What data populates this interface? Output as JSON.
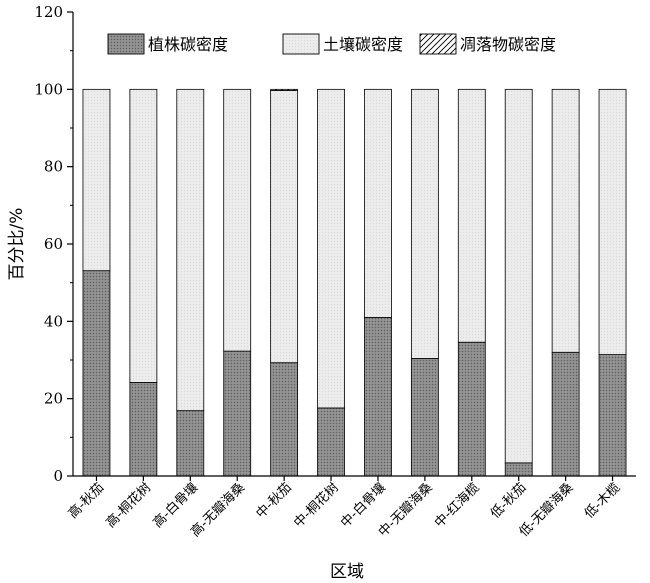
{
  "chart_data": {
    "type": "bar",
    "stacked": true,
    "title": "",
    "xlabel": "区域",
    "ylabel": "百分比/%",
    "ylim": [
      0,
      120
    ],
    "yticks": [
      0,
      20,
      40,
      60,
      80,
      100,
      120
    ],
    "grid": false,
    "legend_position": "top-right",
    "categories": [
      "高-秋茄",
      "高-桐花树",
      "高-白骨壤",
      "高-无瓣海桑",
      "中-秋茄",
      "中-桐花树",
      "中-白骨壤",
      "中-无瓣海桑",
      "中-红海榄",
      "低-秋茄",
      "低-无瓣海桑",
      "低-木榄"
    ],
    "series": [
      {
        "name": "植株碳密度",
        "pattern": "dense-dots",
        "color": "#8c8c8c",
        "values": [
          53.1,
          24.2,
          16.9,
          32.3,
          29.3,
          17.6,
          41.0,
          30.4,
          34.6,
          3.4,
          32.0,
          31.4
        ]
      },
      {
        "name": "土壤碳密度",
        "pattern": "light-fill",
        "color": "#ececec",
        "values": [
          46.9,
          75.8,
          83.1,
          67.7,
          70.4,
          82.4,
          59.0,
          69.6,
          65.4,
          96.6,
          68.0,
          68.6
        ]
      },
      {
        "name": "凋落物碳密度",
        "pattern": "diagonal-hatch",
        "color": "#ffffff",
        "values": [
          0,
          0,
          0,
          0,
          0.3,
          0,
          0,
          0,
          0,
          0,
          0,
          0
        ]
      }
    ]
  }
}
